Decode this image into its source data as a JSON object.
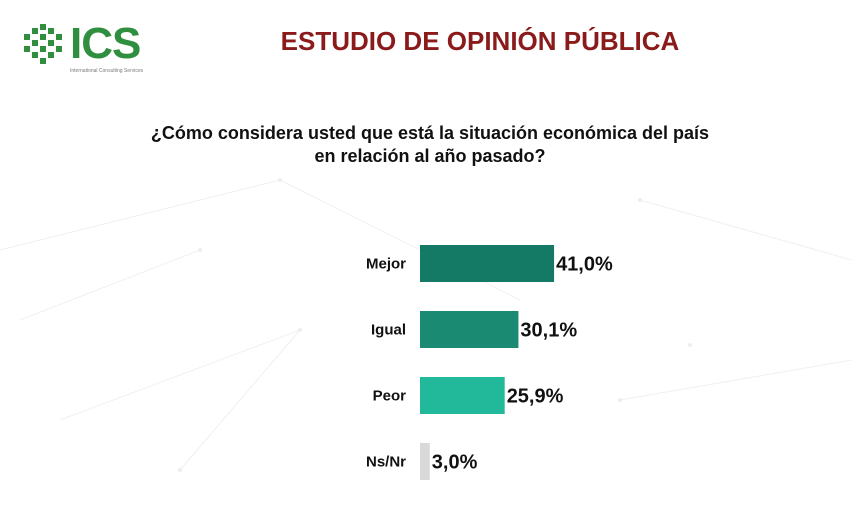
{
  "logo": {
    "text": "ICS",
    "subtitle": "International Consulting Services",
    "color": "#2f8f3e"
  },
  "header": {
    "title": "ESTUDIO DE OPINIÓN PÚBLICA",
    "title_color": "#8b1a1a"
  },
  "chart_data": {
    "type": "bar",
    "orientation": "horizontal",
    "title": "¿Cómo considera usted que está la situación económica del país en relación al año pasado?",
    "title_lines": [
      "¿Cómo considera usted que está la situación económica del país",
      "en relación al año pasado?"
    ],
    "categories": [
      "Mejor",
      "Igual",
      "Peor",
      "Ns/Nr"
    ],
    "values": [
      41.0,
      30.1,
      25.9,
      3.0
    ],
    "value_labels": [
      "41,0%",
      "30,1%",
      "25,9%",
      "3,0%"
    ],
    "colors": [
      "#157a65",
      "#1a8a73",
      "#22b99a",
      "#d9d9d9"
    ],
    "xlim": [
      0,
      100
    ],
    "grid": false,
    "legend": "none"
  }
}
